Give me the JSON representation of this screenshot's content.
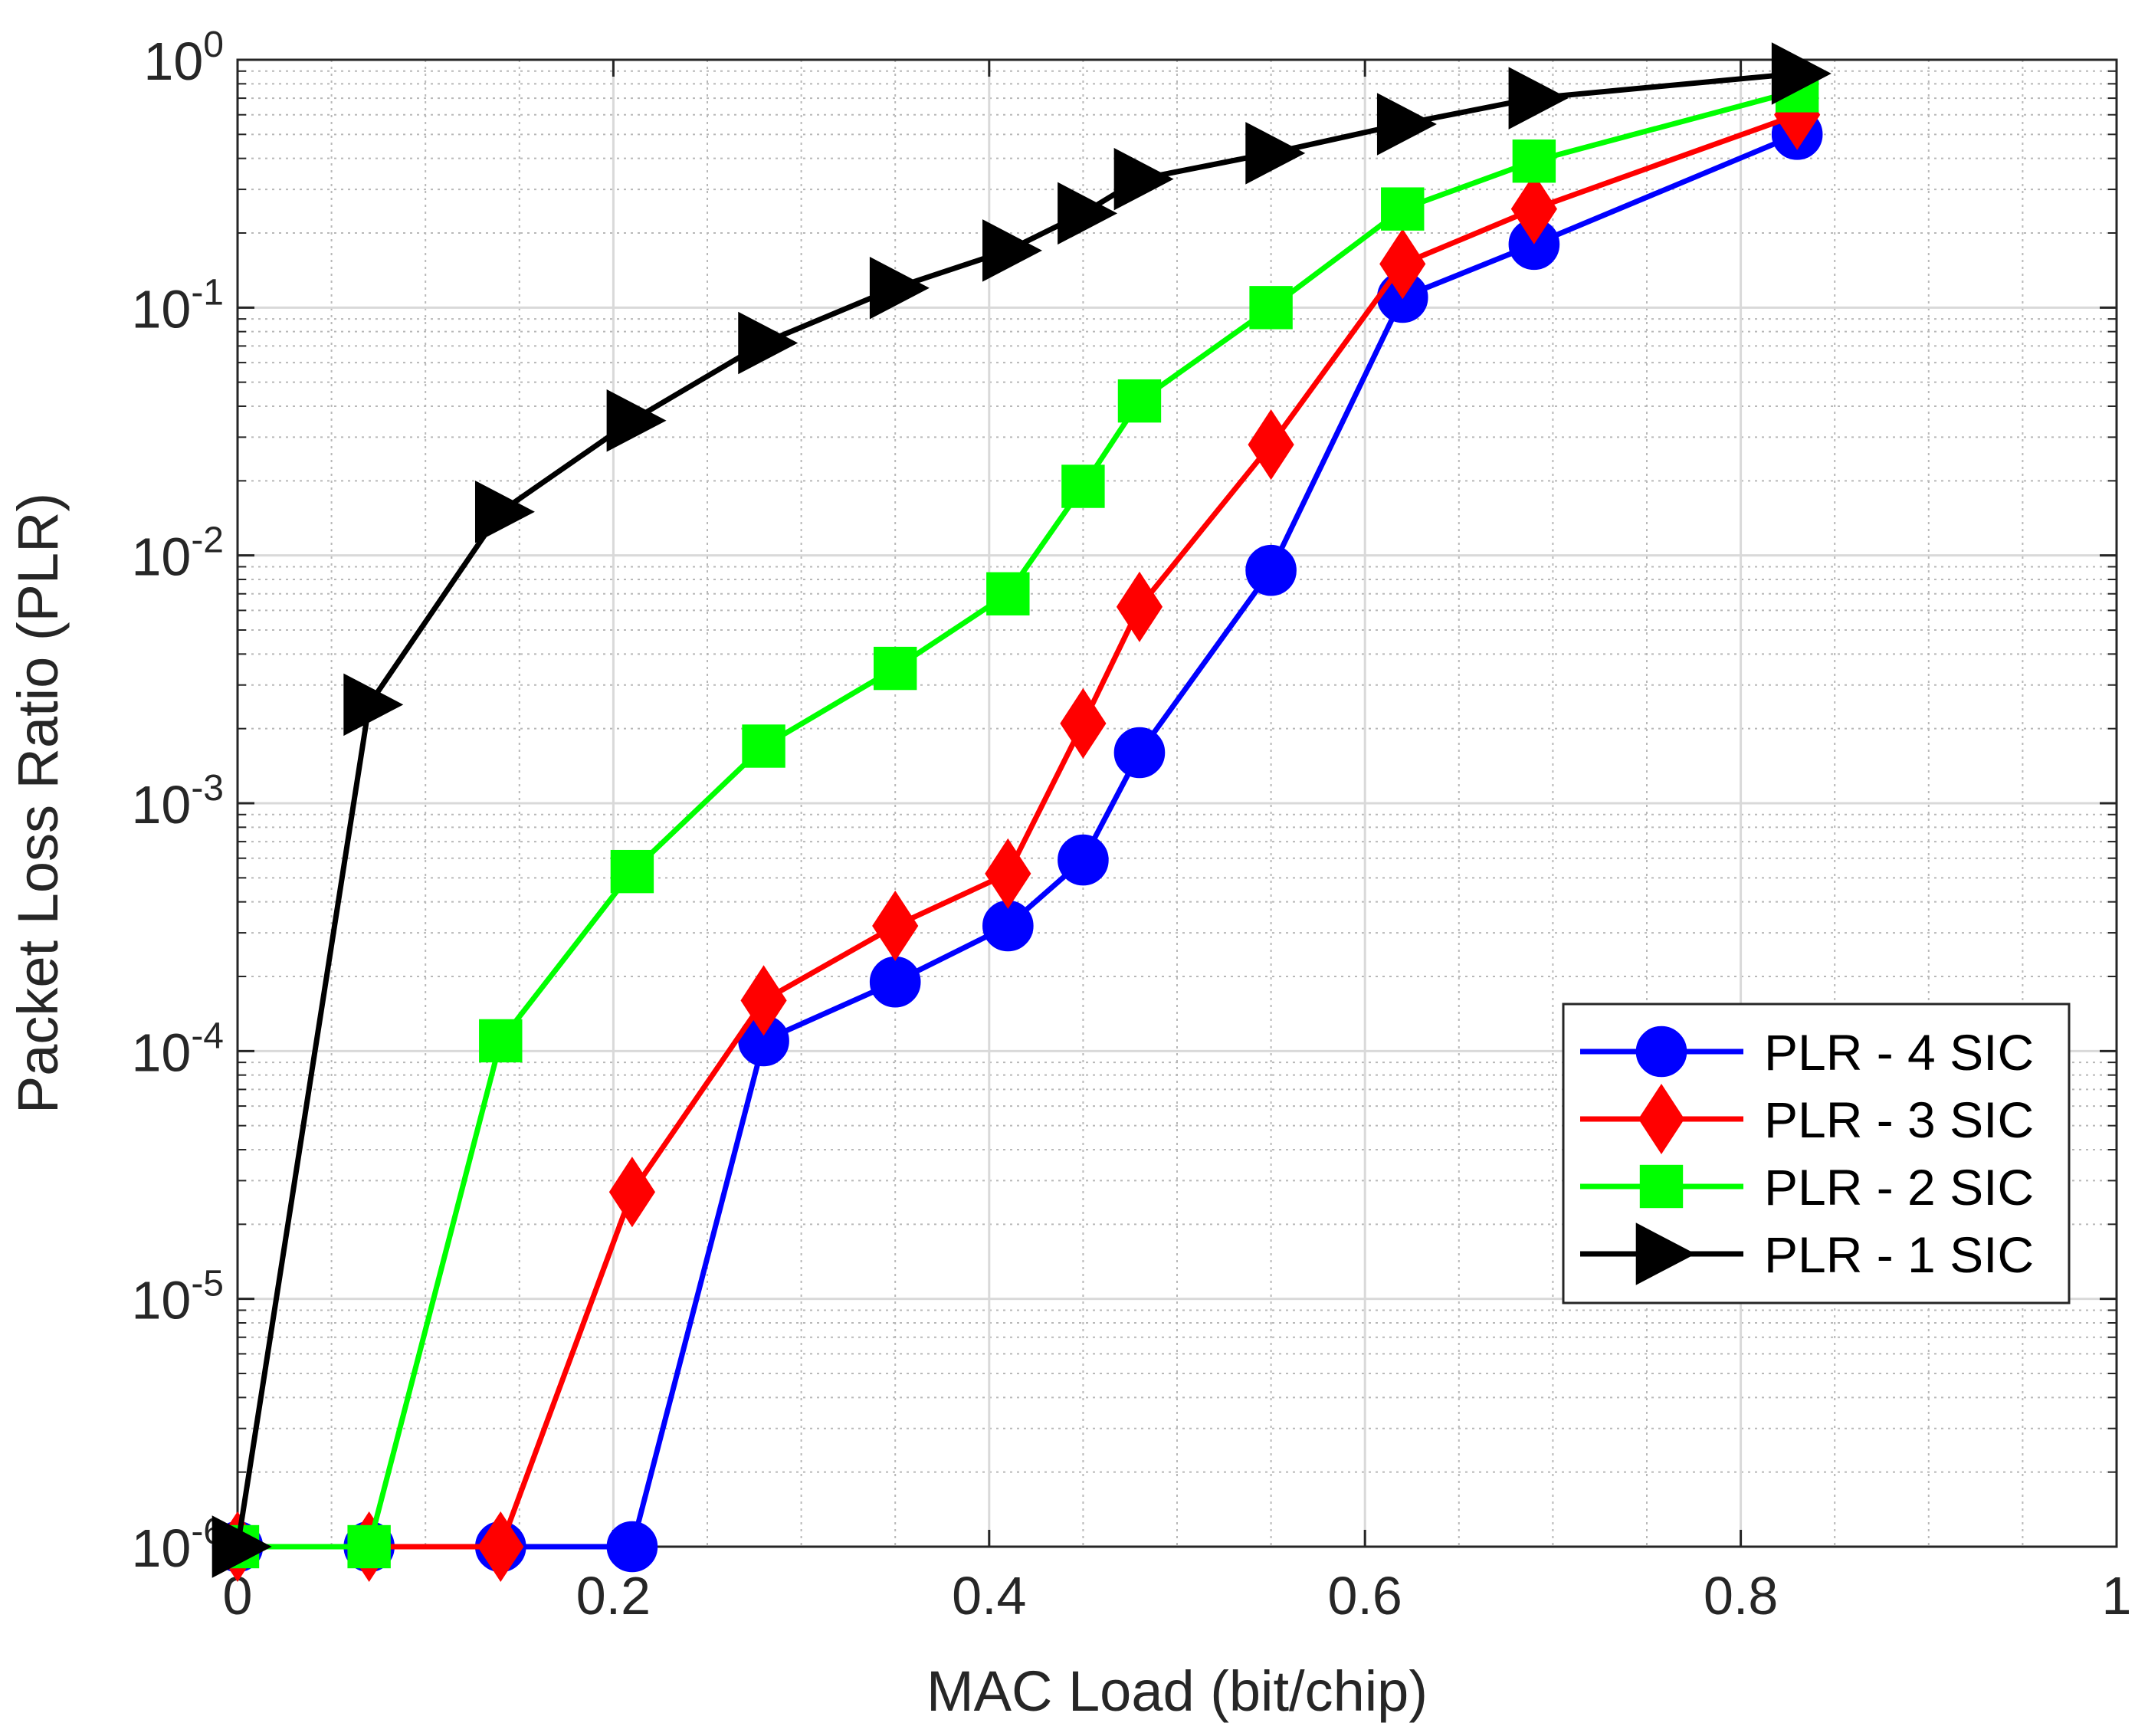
{
  "chart_data": {
    "type": "line",
    "title": "",
    "xlabel": "MAC Load (bit/chip)",
    "ylabel": "Packet Loss Ratio (PLR)",
    "xlim": [
      0,
      1
    ],
    "ylim": [
      1e-06,
      1
    ],
    "yscale": "log",
    "grid": true,
    "minor_grid": true,
    "x_ticks": [
      0,
      0.2,
      0.4,
      0.6,
      0.8,
      1
    ],
    "x_tick_labels": [
      "0",
      "0.2",
      "0.4",
      "0.6",
      "0.8",
      "1"
    ],
    "y_ticks": [
      {
        "value": 1e-06,
        "base": "10",
        "exp": "-6"
      },
      {
        "value": 1e-05,
        "base": "10",
        "exp": "-5"
      },
      {
        "value": 0.0001,
        "base": "10",
        "exp": "-4"
      },
      {
        "value": 0.001,
        "base": "10",
        "exp": "-3"
      },
      {
        "value": 0.01,
        "base": "10",
        "exp": "-2"
      },
      {
        "value": 0.1,
        "base": "10",
        "exp": "-1"
      },
      {
        "value": 1,
        "base": "10",
        "exp": "0"
      }
    ],
    "legend_position": "lower-right",
    "series": [
      {
        "name": "PLR - 4 SIC",
        "color": "#0000ff",
        "marker": "circle",
        "x": [
          0,
          0.07,
          0.14,
          0.21,
          0.28,
          0.35,
          0.41,
          0.45,
          0.48,
          0.55,
          0.62,
          0.69,
          0.83
        ],
        "y": [
          1e-06,
          1e-06,
          1e-06,
          1e-06,
          0.00011,
          0.00019,
          0.00032,
          0.00059,
          0.0016,
          0.0087,
          0.11,
          0.18,
          0.5
        ]
      },
      {
        "name": "PLR - 3 SIC",
        "color": "#ff0000",
        "marker": "diamond",
        "x": [
          0,
          0.07,
          0.14,
          0.21,
          0.28,
          0.35,
          0.41,
          0.45,
          0.48,
          0.55,
          0.62,
          0.69,
          0.83
        ],
        "y": [
          1e-06,
          1e-06,
          1e-06,
          2.7e-05,
          0.00016,
          0.00032,
          0.00052,
          0.0021,
          0.0062,
          0.028,
          0.15,
          0.25,
          0.6
        ]
      },
      {
        "name": "PLR - 2 SIC",
        "color": "#00ff00",
        "marker": "square",
        "x": [
          0,
          0.07,
          0.14,
          0.21,
          0.28,
          0.35,
          0.41,
          0.45,
          0.48,
          0.55,
          0.62,
          0.69,
          0.83
        ],
        "y": [
          1e-06,
          1e-06,
          0.00011,
          0.00053,
          0.0017,
          0.0035,
          0.007,
          0.019,
          0.042,
          0.1,
          0.25,
          0.39,
          0.75
        ]
      },
      {
        "name": "PLR - 1 SIC",
        "color": "#000000",
        "marker": "triangle-right",
        "x": [
          0,
          0.07,
          0.14,
          0.21,
          0.28,
          0.35,
          0.41,
          0.45,
          0.48,
          0.55,
          0.62,
          0.69,
          0.83
        ],
        "y": [
          1e-06,
          0.0025,
          0.015,
          0.035,
          0.072,
          0.12,
          0.17,
          0.24,
          0.33,
          0.42,
          0.55,
          0.7,
          0.88
        ]
      }
    ]
  }
}
